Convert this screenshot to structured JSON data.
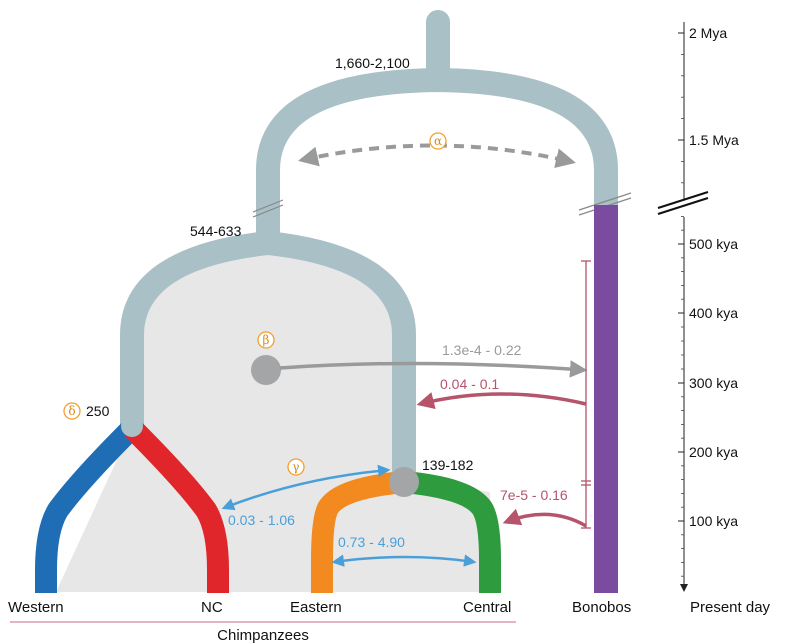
{
  "tree": {
    "root_label": "1,660-2,100",
    "chimp_split_label": "544-633",
    "western_split_label": "250",
    "eastern_split_label": "139-182"
  },
  "populations": {
    "western": "Western",
    "nc": "NC",
    "eastern": "Eastern",
    "central": "Central",
    "bonobos": "Bonobos",
    "present": "Present day",
    "group": "Chimpanzees"
  },
  "greek": {
    "alpha": "α",
    "beta": "β",
    "gamma": "γ",
    "delta": "δ"
  },
  "migration": {
    "beta_rate": "1.3e-4 - 0.22",
    "bonobo_to_chimp": "0.04 - 0.1",
    "bonobo_to_central": "7e-5 - 0.16",
    "gamma_rate": "0.03 - 1.06",
    "eastern_central": "0.73 - 4.90"
  },
  "timeline": {
    "ticks": [
      "2 Mya",
      "1.5 Mya",
      "500 kya",
      "400 kya",
      "300 kya",
      "200 kya",
      "100 kya"
    ]
  },
  "colors": {
    "ancestral": "#a8c0c6",
    "western": "#1f6db4",
    "nc": "#e0262a",
    "eastern": "#f38a20",
    "central": "#2e9b3f",
    "bonobo": "#7b4b9f",
    "fill": "#e7e7e7",
    "grey_arrow": "#999a9c",
    "red_arrow": "#b5546a",
    "blue_arrow": "#4a9fd8",
    "greek_circle": "#f0a030"
  }
}
